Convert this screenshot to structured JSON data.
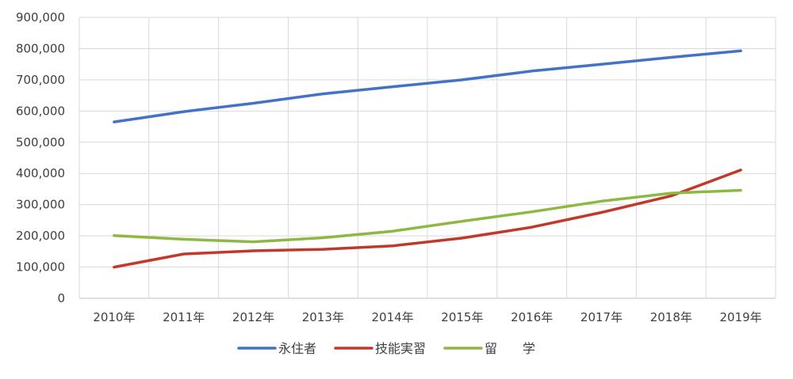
{
  "chart_data": {
    "type": "line",
    "categories": [
      "2010年",
      "2011年",
      "2012年",
      "2013年",
      "2014年",
      "2015年",
      "2016年",
      "2017年",
      "2018年",
      "2019年"
    ],
    "y_ticks": [
      "0",
      "100,000",
      "200,000",
      "300,000",
      "400,000",
      "500,000",
      "600,000",
      "700,000",
      "800,000",
      "900,000"
    ],
    "ylim": [
      0,
      900000
    ],
    "grid": true,
    "legend_position": "bottom",
    "series": [
      {
        "name": "永住者",
        "color": "#4472C4",
        "values": [
          565000,
          598000,
          625000,
          655000,
          678000,
          700000,
          728000,
          750000,
          772000,
          793000
        ]
      },
      {
        "name": "技能実習",
        "color": "#C0392B",
        "values": [
          100000,
          142000,
          152000,
          157000,
          168000,
          193000,
          228000,
          275000,
          328000,
          411000
        ]
      },
      {
        "name": "留　　学",
        "color": "#8DB943",
        "values": [
          201000,
          189000,
          181000,
          194000,
          215000,
          247000,
          277000,
          311000,
          337000,
          346000
        ]
      }
    ]
  }
}
